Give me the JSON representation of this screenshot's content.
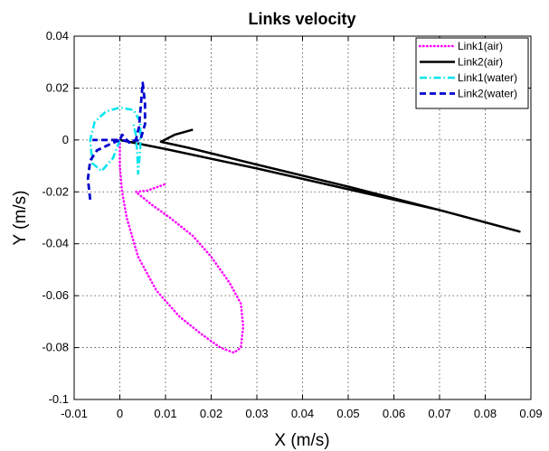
{
  "chart_data": {
    "type": "line",
    "title": "Links velocity",
    "xlabel": "X (m/s)",
    "ylabel": "Y (m/s)",
    "xlim": [
      -0.01,
      0.09
    ],
    "ylim": [
      -0.1,
      0.04
    ],
    "x_ticks": [
      -0.01,
      0,
      0.01,
      0.02,
      0.03,
      0.04,
      0.05,
      0.06,
      0.07,
      0.08,
      0.09
    ],
    "x_tick_labels": [
      "-0.01",
      "0",
      "0.01",
      "0.02",
      "0.03",
      "0.04",
      "0.05",
      "0.06",
      "0.07",
      "0.08",
      "0.09"
    ],
    "y_ticks": [
      -0.1,
      -0.08,
      -0.06,
      -0.04,
      -0.02,
      0,
      0.02,
      0.04
    ],
    "y_tick_labels": [
      "-0.1",
      "-0.08",
      "-0.06",
      "-0.04",
      "-0.02",
      "0",
      "0.02",
      "0.04"
    ],
    "grid": true,
    "legend_position": "top-right",
    "series": [
      {
        "name": "Link1(air)",
        "color": "#ff00ff",
        "style": "dotted",
        "points": [
          [
            0,
            0
          ],
          [
            0,
            -0.01
          ],
          [
            0.0005,
            -0.02
          ],
          [
            0.0015,
            -0.03
          ],
          [
            0.004,
            -0.045
          ],
          [
            0.008,
            -0.058
          ],
          [
            0.013,
            -0.068
          ],
          [
            0.018,
            -0.075
          ],
          [
            0.022,
            -0.08
          ],
          [
            0.025,
            -0.082
          ],
          [
            0.0265,
            -0.08
          ],
          [
            0.027,
            -0.072
          ],
          [
            0.0265,
            -0.063
          ],
          [
            0.024,
            -0.055
          ],
          [
            0.02,
            -0.045
          ],
          [
            0.016,
            -0.037
          ],
          [
            0.011,
            -0.03
          ],
          [
            0.007,
            -0.025
          ],
          [
            0.0035,
            -0.02
          ],
          [
            0.006,
            -0.0195
          ],
          [
            0.01,
            -0.017
          ]
        ]
      },
      {
        "name": "Link2(air)",
        "color": "#000000",
        "style": "solid",
        "points": [
          [
            0,
            0
          ],
          [
            0.01,
            -0.0035
          ],
          [
            0.03,
            -0.011
          ],
          [
            0.05,
            -0.019
          ],
          [
            0.07,
            -0.027
          ],
          [
            0.0875,
            -0.0353
          ],
          [
            0.07,
            -0.027
          ],
          [
            0.05,
            -0.018
          ],
          [
            0.03,
            -0.0095
          ],
          [
            0.015,
            -0.003
          ],
          [
            0.009,
            -0.0007
          ],
          [
            0.012,
            0.002
          ],
          [
            0.016,
            0.004
          ]
        ]
      },
      {
        "name": "Link1(water)",
        "color": "#00e5ee",
        "style": "dashdot",
        "points": [
          [
            0,
            0
          ],
          [
            -0.0015,
            -0.007
          ],
          [
            -0.004,
            -0.012
          ],
          [
            -0.006,
            -0.009
          ],
          [
            -0.0065,
            0
          ],
          [
            -0.0055,
            0.007
          ],
          [
            -0.003,
            0.011
          ],
          [
            0,
            0.0125
          ],
          [
            0.003,
            0.0115
          ],
          [
            0.0045,
            0.007
          ],
          [
            0.0045,
            -0.003
          ],
          [
            0.004,
            -0.013
          ],
          [
            0.0038,
            -0.005
          ],
          [
            0.0035,
            0.002
          ],
          [
            0.003,
            0.006
          ]
        ]
      },
      {
        "name": "Link2(water)",
        "color": "#0000cd",
        "style": "dashed",
        "points": [
          [
            -0.0065,
            -0.023
          ],
          [
            -0.007,
            -0.015
          ],
          [
            -0.0065,
            -0.008
          ],
          [
            -0.005,
            -0.004
          ],
          [
            -0.002,
            -0.0015
          ],
          [
            0,
            0
          ],
          [
            0.002,
            -0.0005
          ],
          [
            0.0045,
            0
          ],
          [
            0.0055,
            0.006
          ],
          [
            0.0055,
            0.014
          ],
          [
            0.005,
            0.022
          ],
          [
            0.0042,
            0.005
          ],
          [
            0.0035,
            0
          ],
          [
            0.002,
            -0.001
          ],
          [
            0.0005,
            0.002
          ],
          [
            0,
            0
          ],
          [
            -0.002,
            0
          ],
          [
            -0.006,
            0
          ]
        ]
      }
    ]
  }
}
